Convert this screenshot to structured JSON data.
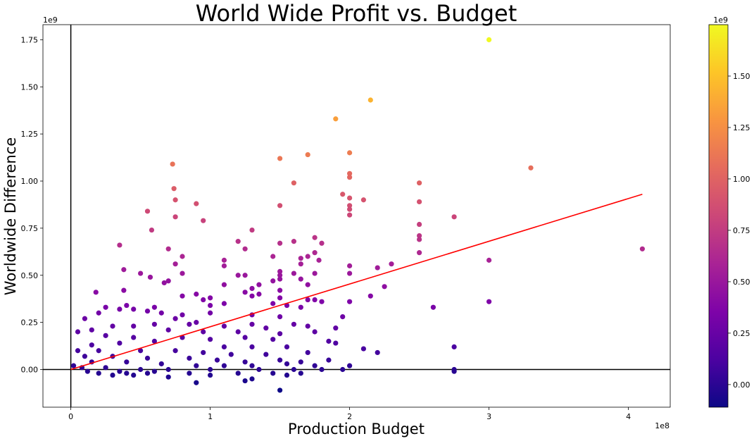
{
  "chart_data": {
    "type": "scatter",
    "title": "World Wide Profit vs. Budget",
    "xlabel": "Production Budget",
    "ylabel": "Worldwide Difference",
    "x_offset_label": "1e8",
    "y_offset_label": "1e9",
    "colorbar_offset_label": "1e9",
    "xlim": [
      -0.2,
      4.3
    ],
    "ylim": [
      -0.2,
      1.83
    ],
    "x_ticks": [
      0,
      1,
      2,
      3,
      4
    ],
    "x_tick_labels": [
      "0",
      "1",
      "2",
      "3",
      "4"
    ],
    "y_ticks": [
      0.0,
      0.25,
      0.5,
      0.75,
      1.0,
      1.25,
      1.5,
      1.75
    ],
    "y_tick_labels": [
      "0.00",
      "0.25",
      "0.50",
      "0.75",
      "1.00",
      "1.25",
      "1.50",
      "1.75"
    ],
    "colorbar_ticks": [
      0.0,
      0.25,
      0.5,
      0.75,
      1.0,
      1.25,
      1.5
    ],
    "colorbar_tick_labels": [
      "0.00",
      "0.25",
      "0.50",
      "0.75",
      "1.00",
      "1.25",
      "1.50"
    ],
    "colorbar_range": [
      -0.11,
      1.75
    ],
    "colormap": "plasma",
    "grid": false,
    "reference_lines": {
      "x": 0,
      "y": 0
    },
    "trend_line": {
      "color": "#ff0000",
      "from": [
        0.0,
        0.0
      ],
      "to": [
        4.1,
        0.93
      ]
    },
    "points": [
      [
        3.0,
        1.75
      ],
      [
        2.15,
        1.43
      ],
      [
        1.9,
        1.33
      ],
      [
        2.0,
        1.15
      ],
      [
        1.7,
        1.14
      ],
      [
        1.5,
        1.12
      ],
      [
        0.73,
        1.09
      ],
      [
        3.3,
        1.07
      ],
      [
        2.0,
        1.04
      ],
      [
        1.6,
        0.99
      ],
      [
        2.5,
        0.99
      ],
      [
        0.74,
        0.96
      ],
      [
        1.95,
        0.93
      ],
      [
        2.0,
        1.02
      ],
      [
        2.0,
        0.91
      ],
      [
        2.1,
        0.9
      ],
      [
        0.75,
        0.9
      ],
      [
        2.5,
        0.89
      ],
      [
        0.9,
        0.88
      ],
      [
        1.5,
        0.87
      ],
      [
        2.0,
        0.87
      ],
      [
        2.0,
        0.85
      ],
      [
        0.55,
        0.84
      ],
      [
        2.0,
        0.82
      ],
      [
        0.75,
        0.81
      ],
      [
        2.75,
        0.81
      ],
      [
        0.95,
        0.79
      ],
      [
        2.5,
        0.77
      ],
      [
        0.58,
        0.74
      ],
      [
        1.3,
        0.74
      ],
      [
        2.5,
        0.71
      ],
      [
        1.75,
        0.7
      ],
      [
        2.5,
        0.69
      ],
      [
        1.2,
        0.68
      ],
      [
        1.5,
        0.67
      ],
      [
        1.6,
        0.68
      ],
      [
        1.8,
        0.67
      ],
      [
        0.35,
        0.66
      ],
      [
        0.7,
        0.64
      ],
      [
        1.25,
        0.64
      ],
      [
        4.1,
        0.64
      ],
      [
        1.75,
        0.62
      ],
      [
        2.5,
        0.62
      ],
      [
        1.45,
        0.6
      ],
      [
        1.7,
        0.6
      ],
      [
        0.8,
        0.6
      ],
      [
        1.65,
        0.59
      ],
      [
        1.78,
        0.58
      ],
      [
        1.1,
        0.58
      ],
      [
        3.0,
        0.58
      ],
      [
        1.65,
        0.56
      ],
      [
        0.75,
        0.56
      ],
      [
        2.3,
        0.56
      ],
      [
        2.0,
        0.55
      ],
      [
        0.38,
        0.53
      ],
      [
        1.1,
        0.55
      ],
      [
        2.2,
        0.54
      ],
      [
        1.5,
        0.52
      ],
      [
        1.6,
        0.51
      ],
      [
        1.75,
        0.51
      ],
      [
        0.5,
        0.51
      ],
      [
        0.8,
        0.51
      ],
      [
        1.2,
        0.5
      ],
      [
        1.25,
        0.5
      ],
      [
        1.5,
        0.5
      ],
      [
        2.0,
        0.51
      ],
      [
        0.57,
        0.49
      ],
      [
        1.5,
        0.48
      ],
      [
        1.65,
        0.48
      ],
      [
        1.45,
        0.47
      ],
      [
        0.7,
        0.47
      ],
      [
        0.67,
        0.46
      ],
      [
        1.1,
        0.45
      ],
      [
        1.35,
        0.45
      ],
      [
        1.7,
        0.45
      ],
      [
        1.3,
        0.43
      ],
      [
        2.25,
        0.44
      ],
      [
        1.5,
        0.42
      ],
      [
        0.38,
        0.42
      ],
      [
        1.25,
        0.41
      ],
      [
        1.35,
        0.4
      ],
      [
        1.3,
        0.39
      ],
      [
        0.8,
        0.39
      ],
      [
        0.9,
        0.4
      ],
      [
        1.0,
        0.38
      ],
      [
        1.5,
        0.38
      ],
      [
        2.15,
        0.39
      ],
      [
        0.18,
        0.41
      ],
      [
        0.95,
        0.37
      ],
      [
        1.8,
        0.36
      ],
      [
        1.7,
        0.37
      ],
      [
        1.75,
        0.37
      ],
      [
        1.45,
        0.35
      ],
      [
        1.55,
        0.34
      ],
      [
        2.0,
        0.36
      ],
      [
        3.0,
        0.36
      ],
      [
        1.0,
        0.34
      ],
      [
        1.1,
        0.35
      ],
      [
        0.4,
        0.34
      ],
      [
        0.6,
        0.33
      ],
      [
        0.25,
        0.33
      ],
      [
        2.6,
        0.33
      ],
      [
        1.65,
        0.33
      ],
      [
        0.35,
        0.32
      ],
      [
        0.45,
        0.32
      ],
      [
        0.55,
        0.31
      ],
      [
        0.2,
        0.3
      ],
      [
        0.65,
        0.3
      ],
      [
        0.8,
        0.29
      ],
      [
        1.0,
        0.3
      ],
      [
        1.3,
        0.29
      ],
      [
        1.5,
        0.28
      ],
      [
        1.95,
        0.28
      ],
      [
        0.1,
        0.27
      ],
      [
        0.75,
        0.27
      ],
      [
        0.9,
        0.25
      ],
      [
        1.3,
        0.24
      ],
      [
        1.6,
        0.24
      ],
      [
        1.9,
        0.22
      ],
      [
        1.7,
        0.23
      ],
      [
        1.4,
        0.22
      ],
      [
        1.1,
        0.23
      ],
      [
        0.85,
        0.24
      ],
      [
        0.6,
        0.24
      ],
      [
        0.45,
        0.23
      ],
      [
        0.3,
        0.23
      ],
      [
        0.05,
        0.2
      ],
      [
        0.15,
        0.21
      ],
      [
        0.7,
        0.21
      ],
      [
        0.95,
        0.2
      ],
      [
        1.2,
        0.2
      ],
      [
        1.5,
        0.19
      ],
      [
        1.75,
        0.2
      ],
      [
        0.25,
        0.18
      ],
      [
        0.45,
        0.17
      ],
      [
        0.8,
        0.17
      ],
      [
        1.0,
        0.16
      ],
      [
        1.25,
        0.17
      ],
      [
        1.45,
        0.16
      ],
      [
        1.85,
        0.15
      ],
      [
        0.6,
        0.15
      ],
      [
        0.35,
        0.14
      ],
      [
        0.15,
        0.13
      ],
      [
        1.1,
        0.12
      ],
      [
        1.3,
        0.12
      ],
      [
        1.55,
        0.12
      ],
      [
        1.9,
        0.14
      ],
      [
        2.75,
        0.12
      ],
      [
        2.1,
        0.11
      ],
      [
        0.05,
        0.1
      ],
      [
        0.2,
        0.1
      ],
      [
        0.5,
        0.1
      ],
      [
        0.75,
        0.1
      ],
      [
        0.95,
        0.09
      ],
      [
        1.15,
        0.08
      ],
      [
        1.4,
        0.08
      ],
      [
        1.7,
        0.09
      ],
      [
        2.2,
        0.09
      ],
      [
        0.1,
        0.07
      ],
      [
        0.3,
        0.07
      ],
      [
        0.55,
        0.06
      ],
      [
        0.85,
        0.06
      ],
      [
        1.05,
        0.05
      ],
      [
        1.25,
        0.04
      ],
      [
        1.5,
        0.05
      ],
      [
        1.65,
        0.04
      ],
      [
        1.85,
        0.05
      ],
      [
        0.15,
        0.04
      ],
      [
        0.4,
        0.04
      ],
      [
        0.65,
        0.03
      ],
      [
        0.9,
        0.02
      ],
      [
        1.1,
        0.02
      ],
      [
        1.3,
        0.02
      ],
      [
        1.55,
        0.03
      ],
      [
        1.75,
        0.02
      ],
      [
        2.0,
        0.02
      ],
      [
        0.02,
        0.02
      ],
      [
        0.08,
        0.01
      ],
      [
        0.25,
        0.01
      ],
      [
        0.5,
        0.0
      ],
      [
        0.7,
        0.0
      ],
      [
        1.0,
        0.0
      ],
      [
        1.35,
        0.0
      ],
      [
        1.6,
        0.0
      ],
      [
        1.8,
        0.0
      ],
      [
        1.95,
        0.0
      ],
      [
        2.75,
        0.0
      ],
      [
        0.12,
        -0.01
      ],
      [
        0.35,
        -0.01
      ],
      [
        0.6,
        -0.01
      ],
      [
        0.85,
        -0.02
      ],
      [
        1.2,
        -0.02
      ],
      [
        1.45,
        -0.02
      ],
      [
        1.65,
        -0.02
      ],
      [
        2.75,
        -0.01
      ],
      [
        0.2,
        -0.02
      ],
      [
        0.45,
        -0.03
      ],
      [
        0.7,
        -0.04
      ],
      [
        1.0,
        -0.03
      ],
      [
        1.3,
        -0.05
      ],
      [
        1.55,
        -0.03
      ],
      [
        0.9,
        -0.07
      ],
      [
        1.25,
        -0.06
      ],
      [
        1.5,
        -0.11
      ],
      [
        0.3,
        -0.03
      ],
      [
        0.55,
        -0.02
      ],
      [
        0.4,
        -0.02
      ]
    ]
  }
}
